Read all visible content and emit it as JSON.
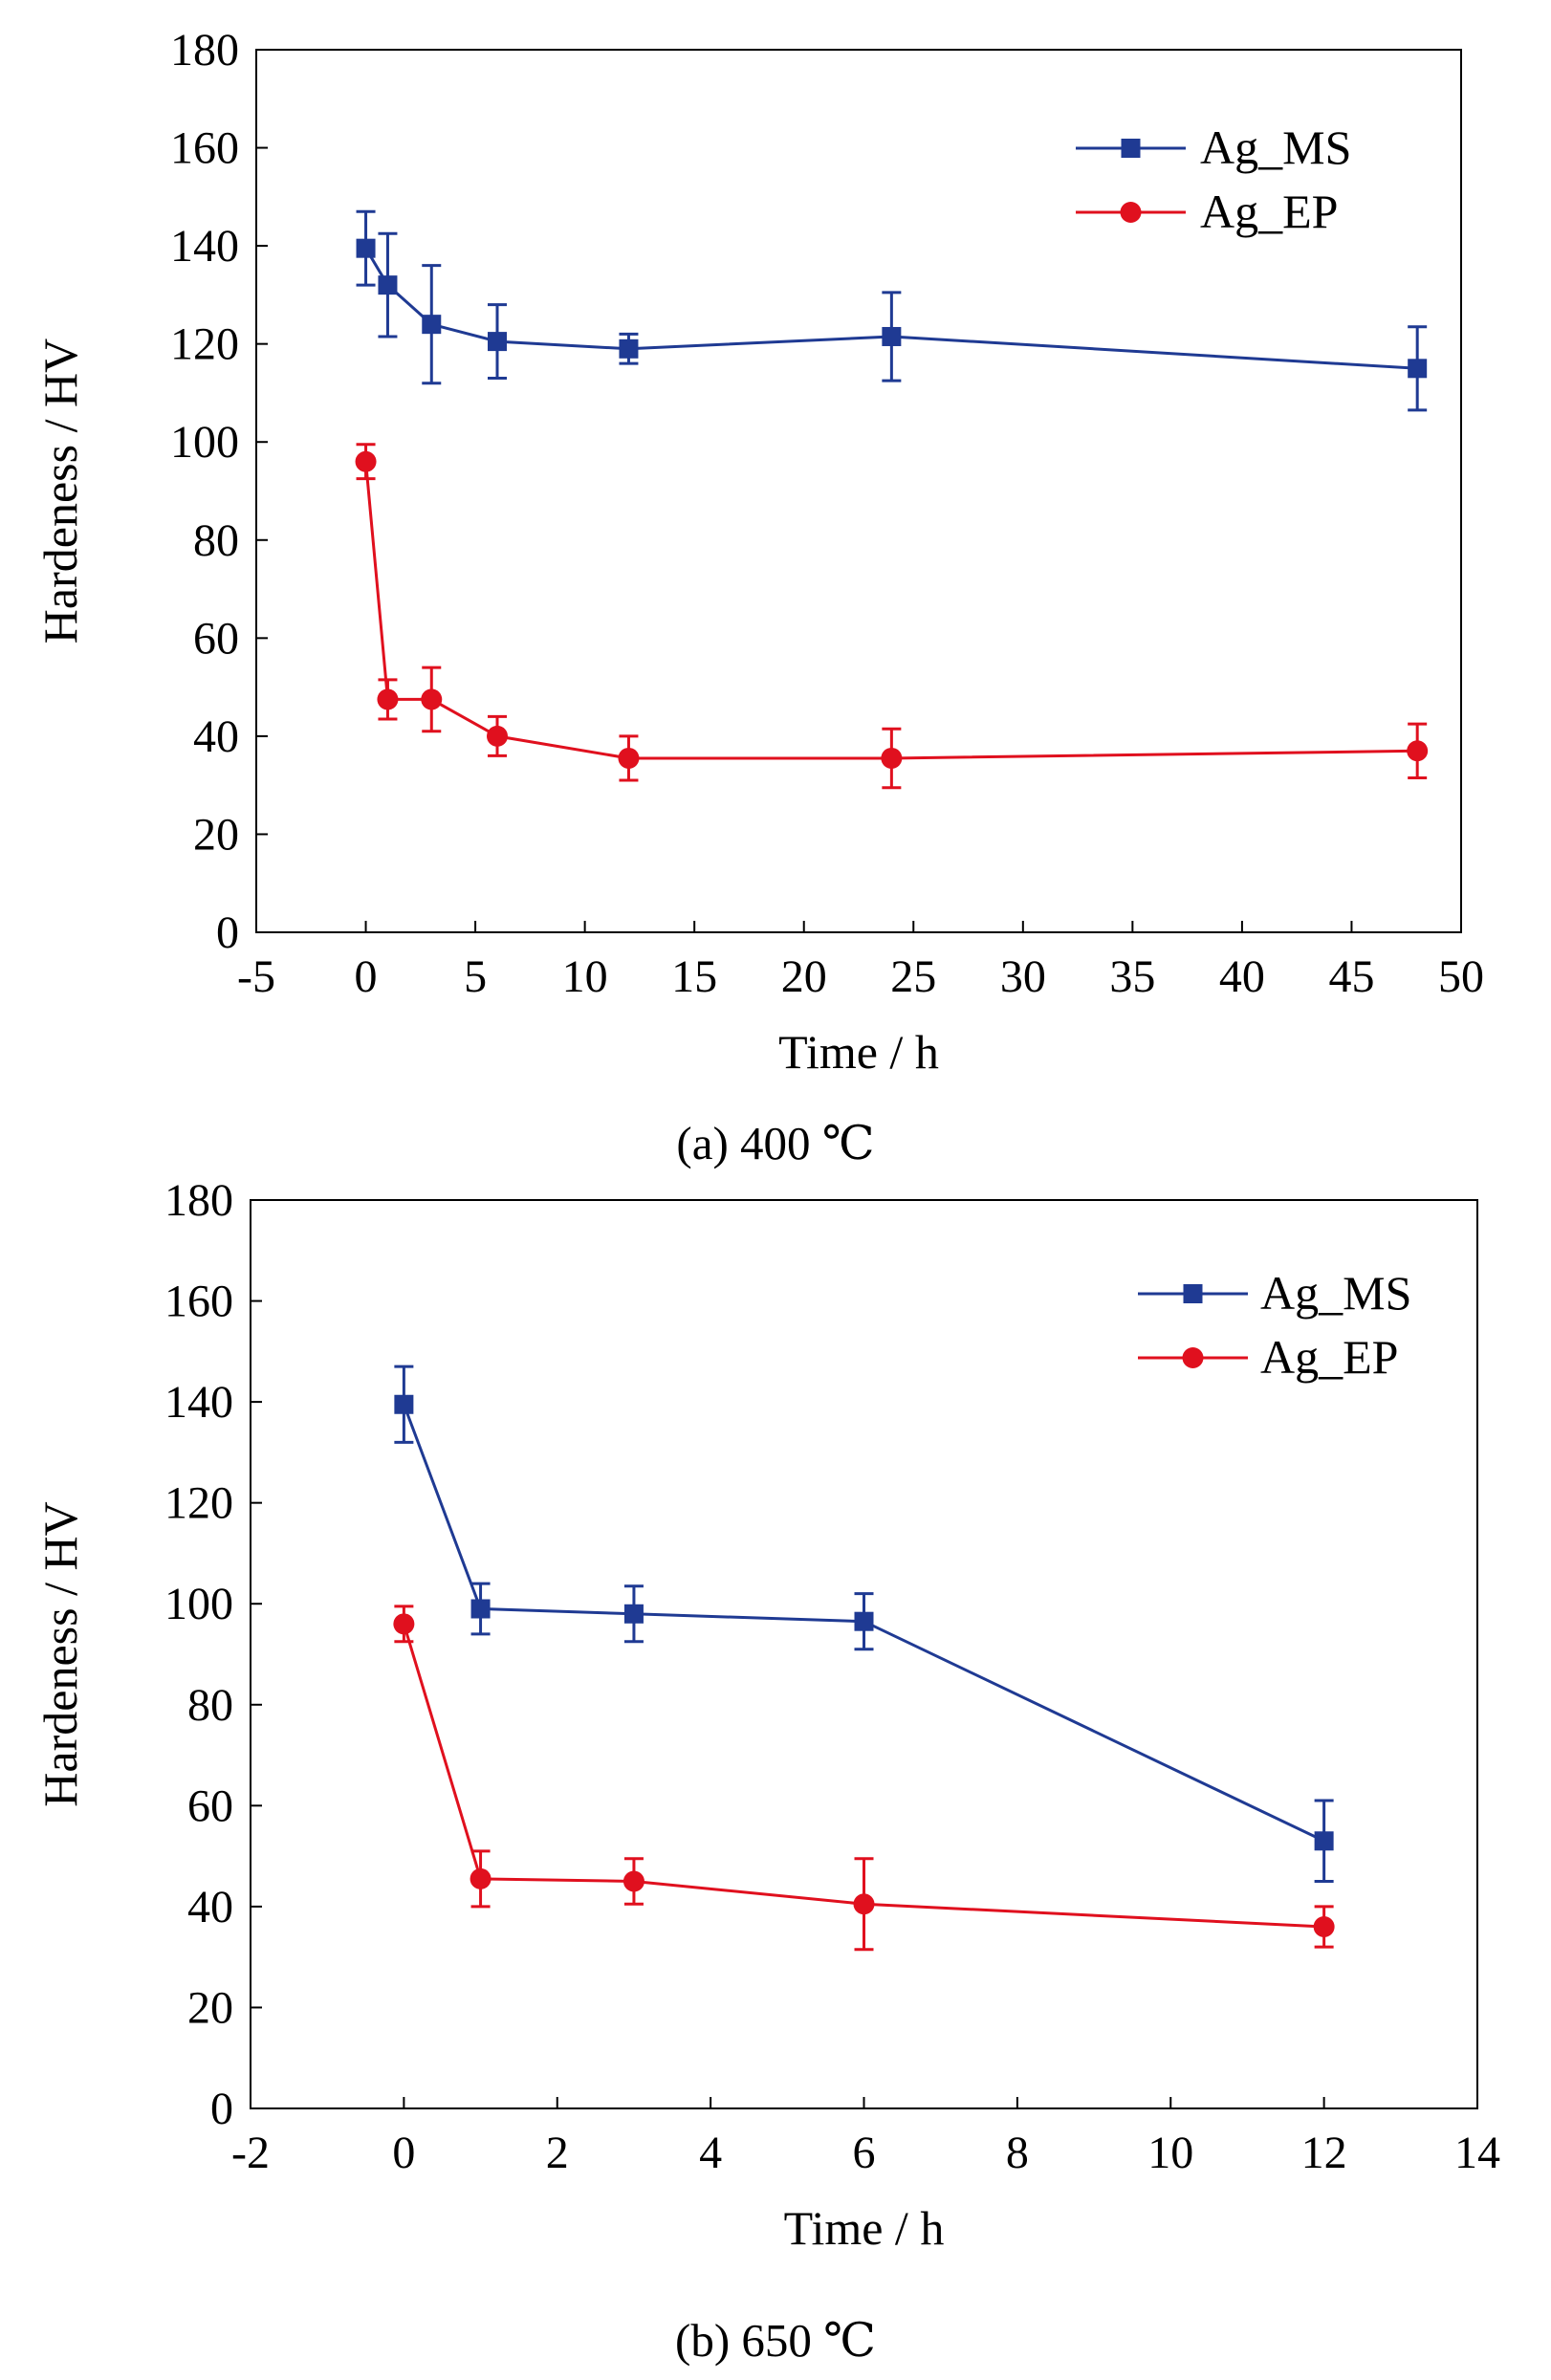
{
  "chart_data": [
    {
      "type": "line",
      "caption": "(a) 400 ℃",
      "xlabel": "Time / h",
      "ylabel": "Hardeness / HV",
      "xlim": [
        -5,
        50
      ],
      "ylim": [
        0,
        180
      ],
      "xticks": [
        -5,
        0,
        5,
        10,
        15,
        20,
        25,
        30,
        35,
        40,
        45,
        50
      ],
      "yticks": [
        0,
        20,
        40,
        60,
        80,
        100,
        120,
        140,
        160,
        180
      ],
      "legend_position": "top-right",
      "series": [
        {
          "name": "Ag_MS",
          "color": "#1f3a93",
          "marker": "square",
          "x": [
            0,
            1,
            3,
            6,
            12,
            24,
            48
          ],
          "y": [
            139.5,
            132,
            124,
            120.5,
            119,
            121.5,
            115
          ],
          "err": [
            7.5,
            10.5,
            12,
            7.5,
            3,
            9,
            8.5
          ]
        },
        {
          "name": "Ag_EP",
          "color": "#e0101e",
          "marker": "circle",
          "x": [
            0,
            1,
            3,
            6,
            12,
            24,
            48
          ],
          "y": [
            96,
            47.5,
            47.5,
            40,
            35.5,
            35.5,
            37
          ],
          "err": [
            3.5,
            4,
            6.5,
            4,
            4.5,
            6,
            5.5
          ]
        }
      ]
    },
    {
      "type": "line",
      "caption": "(b) 650 ℃",
      "xlabel": "Time / h",
      "ylabel": "Hardeness / HV",
      "xlim": [
        -2,
        14
      ],
      "ylim": [
        0,
        180
      ],
      "xticks": [
        -2,
        0,
        2,
        4,
        6,
        8,
        10,
        12,
        14
      ],
      "yticks": [
        0,
        20,
        40,
        60,
        80,
        100,
        120,
        140,
        160,
        180
      ],
      "legend_position": "top-right",
      "series": [
        {
          "name": "Ag_MS",
          "color": "#1f3a93",
          "marker": "square",
          "x": [
            0,
            1,
            3,
            6,
            12
          ],
          "y": [
            139.5,
            99,
            98,
            96.5,
            53
          ],
          "err": [
            7.5,
            5,
            5.5,
            5.5,
            8
          ]
        },
        {
          "name": "Ag_EP",
          "color": "#e0101e",
          "marker": "circle",
          "x": [
            0,
            1,
            3,
            6,
            12
          ],
          "y": [
            96,
            45.5,
            45,
            40.5,
            36
          ],
          "err": [
            3.5,
            5.5,
            4.5,
            9,
            4
          ]
        }
      ]
    }
  ]
}
